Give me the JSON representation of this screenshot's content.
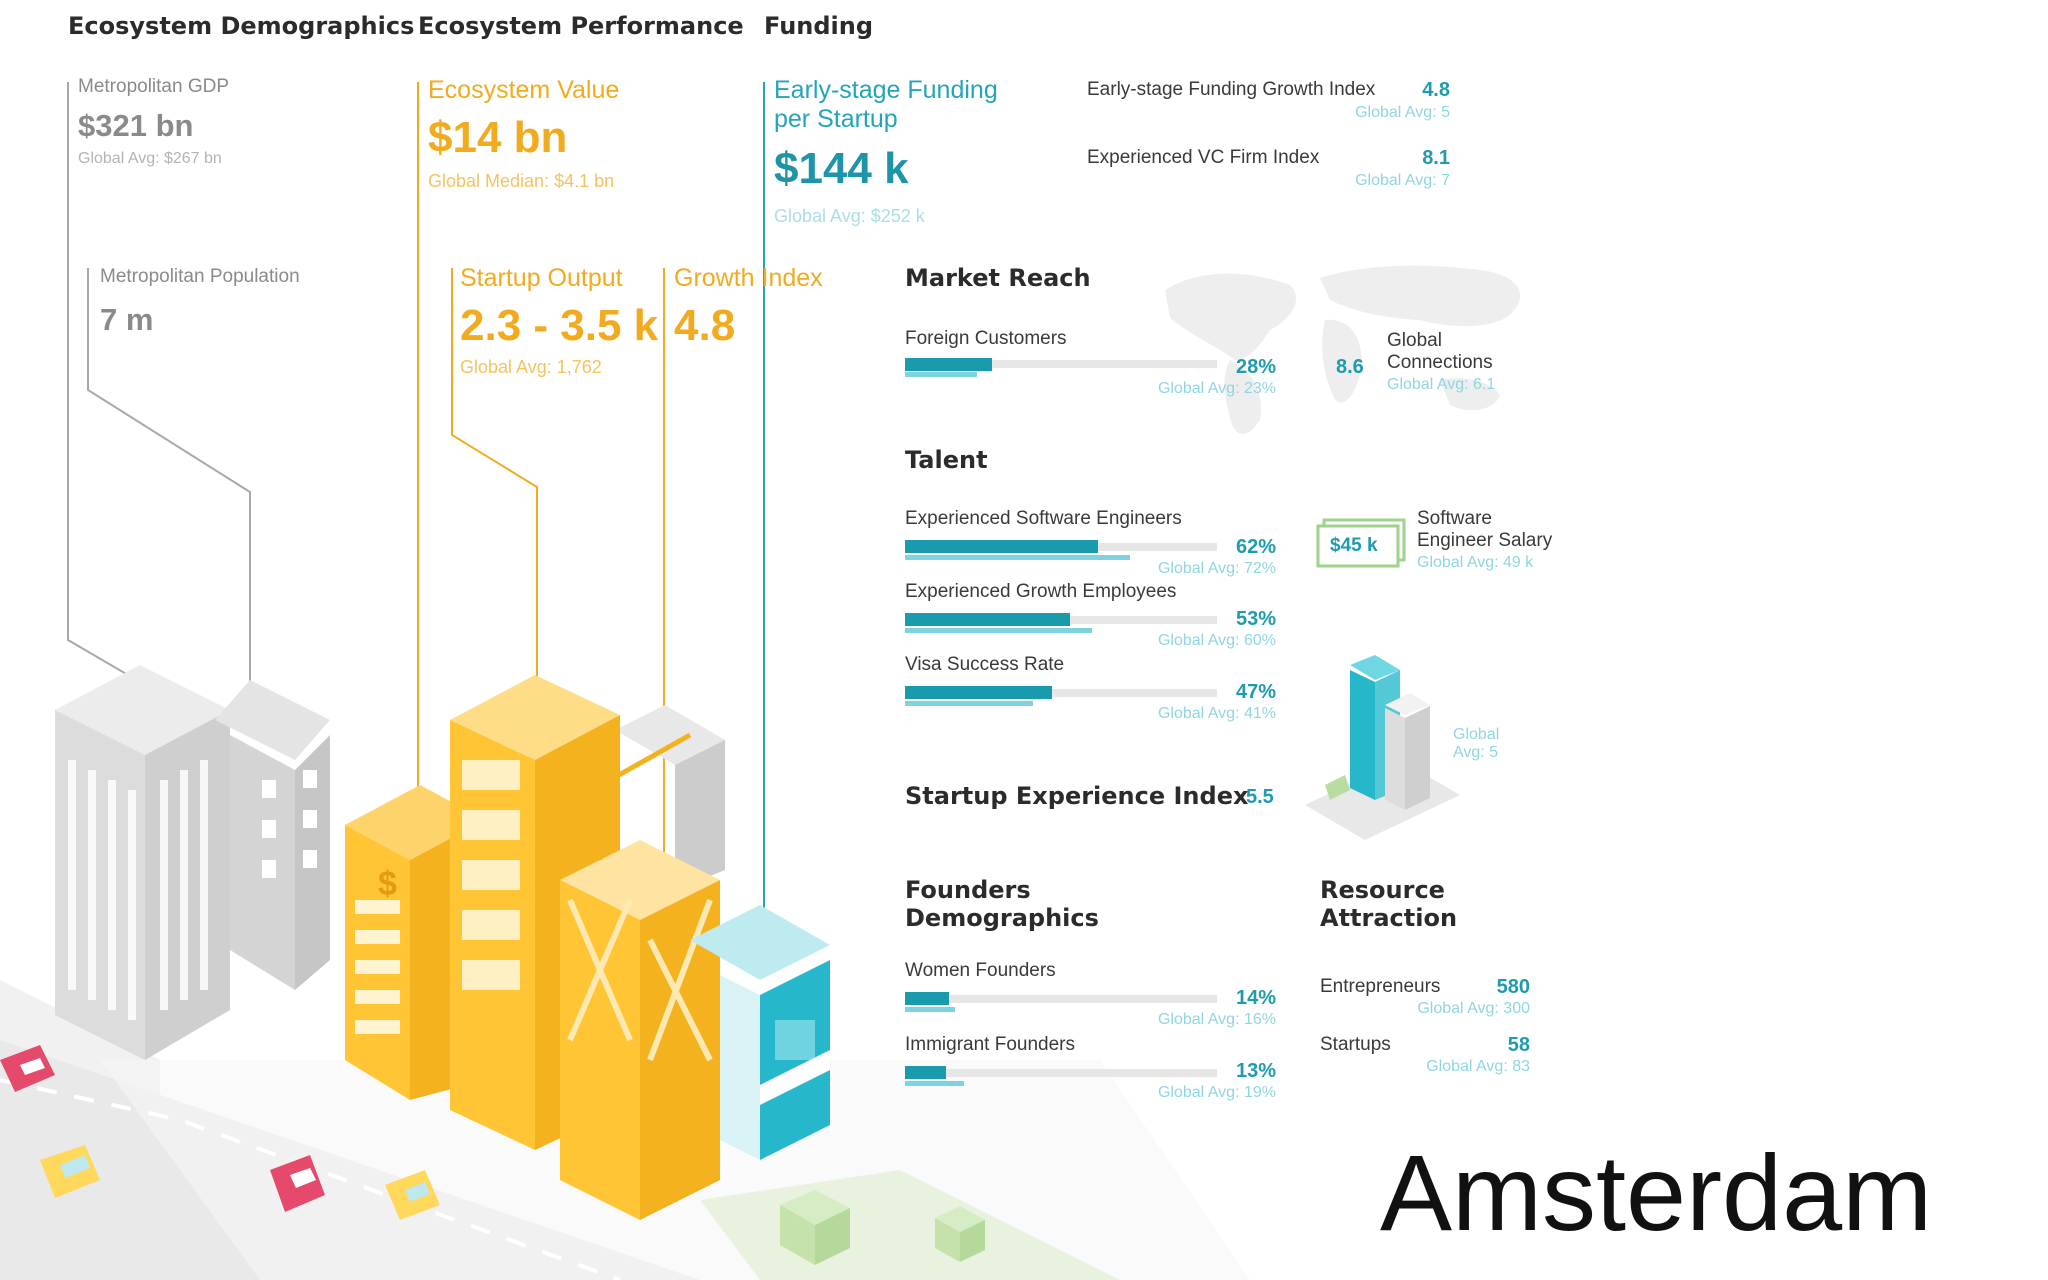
{
  "headers": {
    "demographics": "Ecosystem Demographics",
    "performance": "Ecosystem Performance",
    "funding": "Funding"
  },
  "demographics": {
    "gdp_label": "Metropolitan GDP",
    "gdp_value": "$321 bn",
    "gdp_avg": "Global Avg: $267 bn",
    "pop_label": "Metropolitan Population",
    "pop_value": "7 m"
  },
  "performance": {
    "value_label": "Ecosystem Value",
    "value_value": "$14 bn",
    "value_median": "Global Median: $4.1 bn",
    "output_label": "Startup Output",
    "output_value": "2.3 - 3.5 k",
    "output_avg": "Global Avg: 1,762",
    "growth_label": "Growth Index",
    "growth_value": "4.8"
  },
  "funding": {
    "per_startup_label_1": "Early-stage Funding",
    "per_startup_label_2": "per Startup",
    "per_startup_value": "$144 k",
    "per_startup_avg": "Global Avg: $252 k",
    "growth_index_label": "Early-stage Funding Growth Index",
    "growth_index_value": "4.8",
    "growth_index_avg": "Global Avg: 5",
    "vc_label": "Experienced VC Firm Index",
    "vc_value": "8.1",
    "vc_avg": "Global Avg: 7"
  },
  "market_reach": {
    "title": "Market Reach",
    "foreign_label": "Foreign Customers",
    "foreign_pct": "28%",
    "foreign_avg": "Global Avg: 23%",
    "foreign_value": 0.28,
    "foreign_global": 0.23,
    "connections_value": "8.6",
    "connections_label_1": "Global",
    "connections_label_2": "Connections",
    "connections_avg": "Global Avg: 6.1"
  },
  "talent": {
    "title": "Talent",
    "items": [
      {
        "label": "Experienced Software Engineers",
        "pct": "62%",
        "avg": "Global Avg: 72%",
        "value": 0.62,
        "global": 0.72
      },
      {
        "label": "Experienced Growth Employees",
        "pct": "53%",
        "avg": "Global Avg: 60%",
        "value": 0.53,
        "global": 0.6
      },
      {
        "label": "Visa Success Rate",
        "pct": "47%",
        "avg": "Global Avg: 41%",
        "value": 0.47,
        "global": 0.41
      }
    ],
    "salary_value": "$45 k",
    "salary_label_1": "Software",
    "salary_label_2": "Engineer Salary",
    "salary_avg": "Global Avg: 49 k"
  },
  "experience": {
    "title": "Startup Experience Index",
    "value": "5.5",
    "avg_1": "Global",
    "avg_2": "Avg: 5"
  },
  "founders": {
    "title_1": "Founders",
    "title_2": "Demographics",
    "items": [
      {
        "label": "Women Founders",
        "pct": "14%",
        "avg": "Global Avg: 16%",
        "value": 0.14,
        "global": 0.16
      },
      {
        "label": "Immigrant Founders",
        "pct": "13%",
        "avg": "Global Avg: 19%",
        "value": 0.13,
        "global": 0.19
      }
    ]
  },
  "resource": {
    "title_1": "Resource",
    "title_2": "Attraction",
    "entrepreneurs_label": "Entrepreneurs",
    "entrepreneurs_value": "580",
    "entrepreneurs_avg": "Global Avg: 300",
    "startups_label": "Startups",
    "startups_value": "58",
    "startups_avg": "Global Avg: 83"
  },
  "city": "Amsterdam",
  "colors": {
    "teal": "#1a9aad",
    "orange": "#f2aa1f",
    "gray": "#8a8a8a"
  }
}
